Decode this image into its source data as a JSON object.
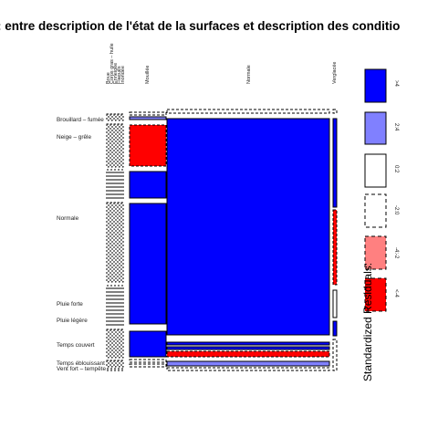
{
  "title": ": entre description de l'état de la surfaces et description des conditio",
  "chart_data": {
    "type": "mosaic",
    "title": ": entre description de l'état de la surfaces et description des conditio",
    "columns": [
      "Boue",
      "Corps gras – huile",
      "Enneigée",
      "Flaques",
      "Inondée",
      "Mouillée",
      "Normale",
      "Verglacée"
    ],
    "rows": [
      "Brouillard – fumée",
      "Neige – grêle",
      "Normale",
      "Pluie forte",
      "Pluie légère",
      "Temps couvert",
      "Temps éblouissant",
      "Vent fort – tempête"
    ],
    "column_shares": [
      0.004,
      0.004,
      0.004,
      0.004,
      0.004,
      0.166,
      0.774,
      0.008
    ],
    "residual_classes": [
      [
        0,
        0,
        0,
        0,
        0,
        0,
        0,
        0
      ],
      [
        0,
        0,
        0,
        0,
        0,
        -3,
        3,
        0
      ],
      [
        0,
        0,
        0,
        0,
        0,
        3,
        3,
        0
      ],
      [
        0,
        0,
        0,
        0,
        0,
        3,
        3,
        -1
      ],
      [
        0,
        0,
        0,
        0,
        0,
        0,
        0,
        0
      ],
      [
        0,
        0,
        0,
        0,
        0,
        3,
        0,
        0
      ],
      [
        0,
        0,
        0,
        0,
        0,
        0,
        -1,
        0
      ],
      [
        0,
        0,
        0,
        0,
        0,
        0,
        0,
        0
      ]
    ],
    "legend": {
      "title": "Standardized Residuals:",
      "entries": [
        {
          "label": ">4",
          "color": "#0000ff"
        },
        {
          "label": "2:4",
          "color": "#8080ff"
        },
        {
          "label": "0:2",
          "color": "#ffffff"
        },
        {
          "label": "-2:0",
          "color": "#ffffff"
        },
        {
          "label": "-4:-2",
          "color": "#ff8080"
        },
        {
          "label": "<-4",
          "color": "#ff0000"
        }
      ]
    }
  }
}
